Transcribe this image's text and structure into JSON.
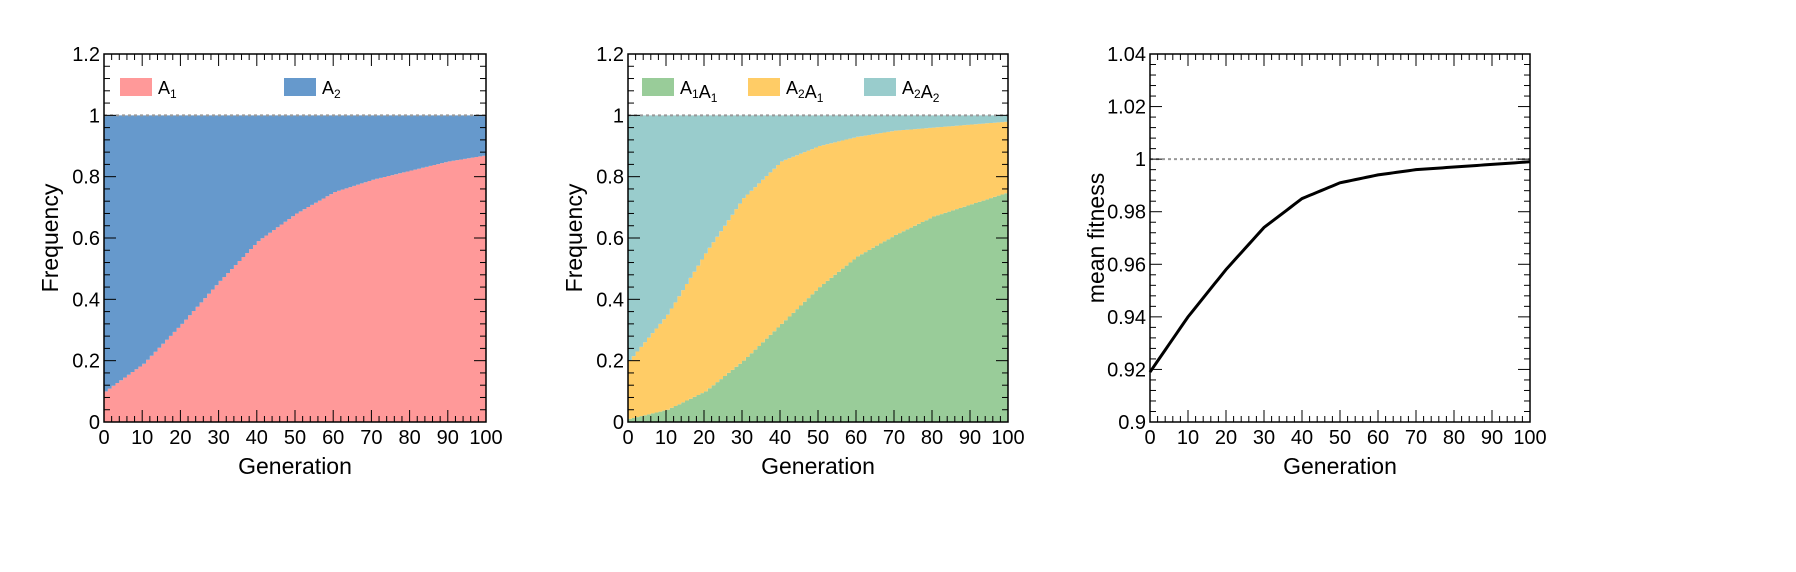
{
  "chart_data": [
    {
      "type": "area",
      "xlabel": "Generation",
      "ylabel": "Frequency",
      "xlim": [
        0,
        100
      ],
      "ylim": [
        0,
        1.2
      ],
      "xticks": [
        "0",
        "10",
        "20",
        "30",
        "40",
        "50",
        "60",
        "70",
        "80",
        "90",
        "100"
      ],
      "yticks": [
        "0",
        "0.2",
        "0.4",
        "0.6",
        "0.8",
        "1",
        "1.2"
      ],
      "stacked": true,
      "legend_placement": "top",
      "x": [
        0,
        10,
        20,
        30,
        40,
        50,
        60,
        70,
        80,
        90,
        100
      ],
      "series": [
        {
          "base": "A",
          "sub": "1",
          "color": "#FF9999",
          "values": [
            0.1,
            0.19,
            0.32,
            0.46,
            0.59,
            0.68,
            0.75,
            0.79,
            0.82,
            0.85,
            0.87
          ]
        },
        {
          "base": "A",
          "sub": "2",
          "color": "#6699CC",
          "values": [
            0.9,
            0.81,
            0.68,
            0.54,
            0.41,
            0.32,
            0.25,
            0.21,
            0.18,
            0.15,
            0.13
          ]
        }
      ],
      "reference_line": {
        "y": 1,
        "style": "dotted"
      }
    },
    {
      "type": "area",
      "xlabel": "Generation",
      "ylabel": "Frequency",
      "xlim": [
        0,
        100
      ],
      "ylim": [
        0,
        1.2
      ],
      "xticks": [
        "0",
        "10",
        "20",
        "30",
        "40",
        "50",
        "60",
        "70",
        "80",
        "90",
        "100"
      ],
      "yticks": [
        "0",
        "0.2",
        "0.4",
        "0.6",
        "0.8",
        "1",
        "1.2"
      ],
      "stacked": true,
      "legend_placement": "top",
      "x": [
        0,
        10,
        20,
        30,
        40,
        50,
        60,
        70,
        80,
        90,
        100
      ],
      "series": [
        {
          "labels": [
            {
              "base": "A",
              "sub": "1"
            },
            {
              "base": "A",
              "sub": "1"
            }
          ],
          "color": "#99CC99",
          "values": [
            0.01,
            0.04,
            0.1,
            0.2,
            0.32,
            0.44,
            0.54,
            0.61,
            0.67,
            0.71,
            0.75
          ]
        },
        {
          "labels": [
            {
              "base": "A",
              "sub": "2"
            },
            {
              "base": "A",
              "sub": "1"
            }
          ],
          "color": "#FFCC66",
          "values": [
            0.19,
            0.31,
            0.45,
            0.53,
            0.53,
            0.46,
            0.39,
            0.34,
            0.29,
            0.26,
            0.23
          ]
        },
        {
          "labels": [
            {
              "base": "A",
              "sub": "2"
            },
            {
              "base": "A",
              "sub": "2"
            }
          ],
          "color": "#99CCCC",
          "values": [
            0.8,
            0.65,
            0.45,
            0.27,
            0.15,
            0.1,
            0.07,
            0.05,
            0.04,
            0.03,
            0.02
          ]
        }
      ],
      "reference_line": {
        "y": 1,
        "style": "dotted"
      }
    },
    {
      "type": "line",
      "xlabel": "Generation",
      "ylabel": "mean fitness",
      "xlim": [
        0,
        100
      ],
      "ylim": [
        0.9,
        1.04
      ],
      "xticks": [
        "0",
        "10",
        "20",
        "30",
        "40",
        "50",
        "60",
        "70",
        "80",
        "90",
        "100"
      ],
      "yticks": [
        "0.9",
        "0.92",
        "0.94",
        "0.96",
        "0.98",
        "1",
        "1.02",
        "1.04"
      ],
      "x": [
        0,
        10,
        20,
        30,
        40,
        50,
        60,
        70,
        80,
        90,
        100
      ],
      "series": [
        {
          "color": "#000000",
          "values": [
            0.919,
            0.94,
            0.958,
            0.974,
            0.985,
            0.991,
            0.994,
            0.996,
            0.997,
            0.998,
            0.999
          ]
        }
      ],
      "reference_line": {
        "y": 1,
        "style": "dotted"
      }
    }
  ]
}
